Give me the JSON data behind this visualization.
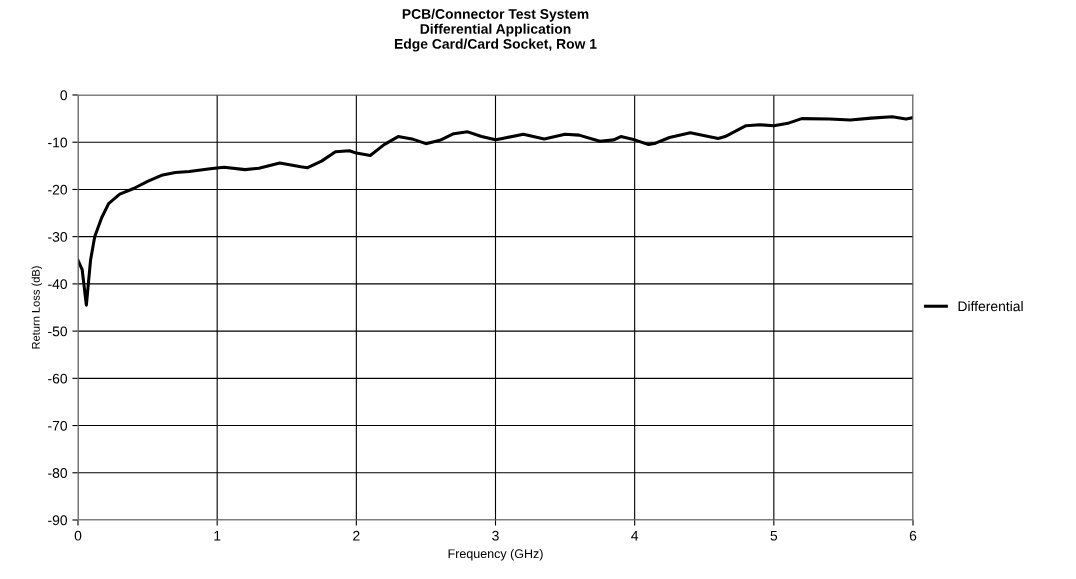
{
  "chart_data": {
    "type": "line",
    "title": "PCB/Connector Test System\nDifferential Application\nEdge Card/Card Socket, Row 1",
    "xlabel": "Frequency (GHz)",
    "ylabel": "Return Loss (dB)",
    "xlim": [
      0,
      6
    ],
    "xticks": [
      0,
      1,
      2,
      3,
      4,
      5,
      6
    ],
    "ylim": [
      -90,
      0
    ],
    "yticks": [
      -90,
      -80,
      -70,
      -60,
      -50,
      -40,
      -30,
      -20,
      -10,
      0
    ],
    "grid": true,
    "legend": "right",
    "marker": "none",
    "line_style": "solid",
    "series": [
      {
        "name": "Differential",
        "color": "#000000",
        "x": [
          0,
          0.03,
          0.06,
          0.09,
          0.12,
          0.17,
          0.22,
          0.3,
          0.4,
          0.5,
          0.6,
          0.7,
          0.8,
          0.95,
          1.05,
          1.2,
          1.3,
          1.45,
          1.6,
          1.65,
          1.75,
          1.85,
          1.95,
          2.0,
          2.1,
          2.2,
          2.3,
          2.4,
          2.5,
          2.6,
          2.7,
          2.8,
          2.9,
          3.0,
          3.05,
          3.2,
          3.35,
          3.5,
          3.6,
          3.75,
          3.85,
          3.9,
          4.0,
          4.1,
          4.15,
          4.25,
          4.4,
          4.6,
          4.65,
          4.8,
          4.9,
          5.0,
          5.1,
          5.2,
          5.4,
          5.55,
          5.7,
          5.85,
          5.95,
          6.0
        ],
        "values": [
          -35,
          -37,
          -44.5,
          -35,
          -30,
          -26,
          -23,
          -21,
          -19.8,
          -18.3,
          -17,
          -16.4,
          -16.2,
          -15.6,
          -15.3,
          -15.8,
          -15.5,
          -14.4,
          -15.2,
          -15.4,
          -14,
          -12,
          -11.8,
          -12.3,
          -12.8,
          -10.5,
          -8.8,
          -9.3,
          -10.3,
          -9.6,
          -8.2,
          -7.8,
          -8.8,
          -9.5,
          -9.2,
          -8.3,
          -9.3,
          -8.3,
          -8.5,
          -9.8,
          -9.5,
          -8.8,
          -9.5,
          -10.5,
          -10.2,
          -9,
          -8,
          -9.2,
          -8.8,
          -6.5,
          -6.3,
          -6.5,
          -6,
          -5,
          -5.1,
          -5.3,
          -4.9,
          -4.6,
          -5.1,
          -4.8
        ]
      }
    ]
  }
}
